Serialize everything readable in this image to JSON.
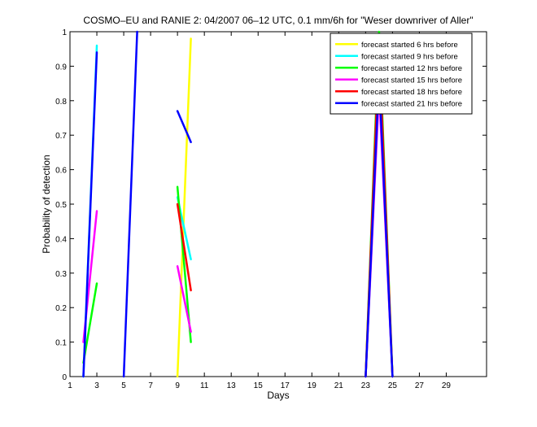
{
  "chart_data": {
    "type": "line",
    "title": "COSMO–EU and RANIE 2: 04/2007 06–12 UTC, 0.1 mm/6h for \"Weser downriver of Aller\"",
    "xlabel": "Days",
    "ylabel": "Probability of detection",
    "xlim": [
      1,
      32
    ],
    "ylim": [
      0,
      1
    ],
    "x_ticks": [
      1,
      3,
      5,
      7,
      9,
      11,
      13,
      15,
      17,
      19,
      21,
      23,
      25,
      27,
      29
    ],
    "y_ticks": [
      0,
      0.1,
      0.2,
      0.3,
      0.4,
      0.5,
      0.6,
      0.7,
      0.8,
      0.9,
      1
    ],
    "y_tick_labels": [
      "0",
      "0.1",
      "0.2",
      "0.3",
      "0.4",
      "0.5",
      "0.6",
      "0.7",
      "0.8",
      "0.9",
      "1"
    ],
    "legend_position": "top-right",
    "series": [
      {
        "name": "forecast started 6 hrs before",
        "color": "#ffff00",
        "segments": [
          [
            [
              9,
              0
            ],
            [
              10,
              0.98
            ]
          ],
          [
            [
              23,
              0
            ],
            [
              24,
              0.95
            ],
            [
              25,
              0
            ]
          ]
        ]
      },
      {
        "name": "forecast started 9 hrs before",
        "color": "#00ffff",
        "segments": [
          [
            [
              2,
              0
            ],
            [
              3,
              0.96
            ]
          ],
          [
            [
              9,
              0.52
            ],
            [
              10,
              0.34
            ]
          ],
          [
            [
              23,
              0
            ],
            [
              24,
              0.85
            ],
            [
              25,
              0
            ]
          ]
        ]
      },
      {
        "name": "forecast started 12 hrs before",
        "color": "#00ff00",
        "segments": [
          [
            [
              2,
              0.04
            ],
            [
              3,
              0.27
            ]
          ],
          [
            [
              9,
              0.55
            ],
            [
              10,
              0.1
            ]
          ],
          [
            [
              23,
              0
            ],
            [
              24,
              1
            ],
            [
              25,
              0
            ]
          ]
        ]
      },
      {
        "name": "forecast started 15 hrs before",
        "color": "#ff00ff",
        "segments": [
          [
            [
              2,
              0.1
            ],
            [
              3,
              0.48
            ]
          ],
          [
            [
              9,
              0.32
            ],
            [
              10,
              0.13
            ]
          ],
          [
            [
              23,
              0
            ],
            [
              24,
              0.83
            ],
            [
              25,
              0
            ]
          ]
        ]
      },
      {
        "name": "forecast started 18 hrs before",
        "color": "#ff0000",
        "segments": [
          [
            [
              9,
              0.5
            ],
            [
              10,
              0.25
            ]
          ],
          [
            [
              23,
              0
            ],
            [
              24,
              0.96
            ],
            [
              25,
              0
            ]
          ]
        ]
      },
      {
        "name": "forecast started 21 hrs before",
        "color": "#0000ff",
        "segments": [
          [
            [
              2,
              0
            ],
            [
              3,
              0.94
            ]
          ],
          [
            [
              5,
              0
            ],
            [
              6,
              1
            ]
          ],
          [
            [
              9,
              0.77
            ],
            [
              10,
              0.68
            ]
          ],
          [
            [
              23,
              0
            ],
            [
              24,
              0.87
            ],
            [
              25,
              0
            ]
          ]
        ]
      }
    ]
  }
}
